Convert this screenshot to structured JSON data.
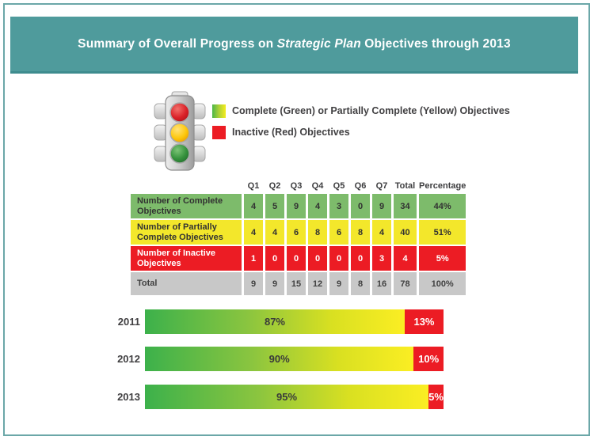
{
  "header": {
    "title_prefix": "Summary of Overall Progress on",
    "title_italic": "Strategic Plan",
    "title_suffix": "Objectives through 2013"
  },
  "colors": {
    "banner_teal": "#4F9B9C",
    "frame_teal": "#6BA7A8",
    "complete_green": "#7DBB6B",
    "partial_yellow": "#F3E72B",
    "inactive_red": "#EC1C24",
    "total_gray": "#C8C8C8",
    "bar_gradient_start": "#3CB14B",
    "bar_gradient_end": "#FBEE23",
    "text_dark": "#414042"
  },
  "legend": {
    "items": [
      {
        "swatch": "green-to-yellow-gradient",
        "label": "Complete (Green) or Partially Complete (Yellow) Objectives"
      },
      {
        "swatch": "solid-red",
        "label": "Inactive (Red) Objectives"
      }
    ]
  },
  "chart_data": [
    {
      "type": "table",
      "columns": [
        "Q1",
        "Q2",
        "Q3",
        "Q4",
        "Q5",
        "Q6",
        "Q7",
        "Total",
        "Percentage"
      ],
      "rows": [
        {
          "label": "Number of Complete Objectives",
          "style": "green",
          "values": [
            4,
            5,
            9,
            4,
            3,
            0,
            9
          ],
          "total": 34,
          "percentage": "44%"
        },
        {
          "label": "Number of Partially Complete Objectives",
          "style": "yellow",
          "values": [
            4,
            4,
            6,
            8,
            6,
            8,
            4
          ],
          "total": 40,
          "percentage": "51%"
        },
        {
          "label": "Number of Inactive Objectives",
          "style": "red",
          "values": [
            1,
            0,
            0,
            0,
            0,
            0,
            3
          ],
          "total": 4,
          "percentage": "5%"
        },
        {
          "label": "Total",
          "style": "gray",
          "values": [
            9,
            9,
            15,
            12,
            9,
            8,
            16
          ],
          "total": 78,
          "percentage": "100%"
        }
      ]
    },
    {
      "type": "bar",
      "subtype": "horizontal-stacked",
      "categories": [
        "2011",
        "2012",
        "2013"
      ],
      "series": [
        {
          "name": "Complete (Green) or Partially Complete (Yellow) Objectives",
          "values": [
            87,
            90,
            95
          ],
          "labels": [
            "87%",
            "90%",
            "95%"
          ]
        },
        {
          "name": "Inactive (Red) Objectives",
          "values": [
            13,
            10,
            5
          ],
          "labels": [
            "13%",
            "10%",
            "5%"
          ]
        }
      ],
      "value_format": "percent",
      "xlim": [
        0,
        100
      ],
      "legend_position": "top",
      "grid": false
    }
  ]
}
